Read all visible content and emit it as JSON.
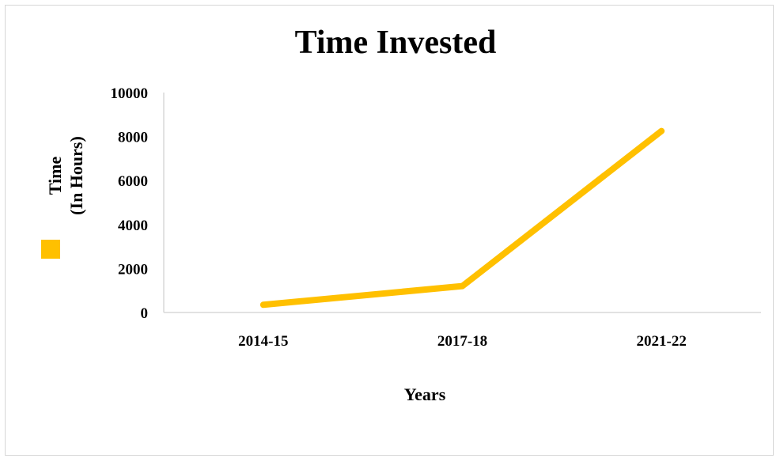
{
  "chart_data": {
    "type": "line",
    "title": "Time Invested",
    "categories": [
      "2014-15",
      "2017-18",
      "2021-22"
    ],
    "series": [
      {
        "values": [
          350,
          1200,
          8250
        ],
        "color": "#FFC000"
      }
    ],
    "xlabel": "Years",
    "ylabel_lines": [
      "Time",
      "(In Hours)"
    ],
    "ylim": [
      0,
      10000
    ],
    "yticks": [
      0,
      2000,
      4000,
      6000,
      8000,
      10000
    ],
    "grid": false,
    "legend": "left",
    "axis_color": "#d9d9d9"
  }
}
